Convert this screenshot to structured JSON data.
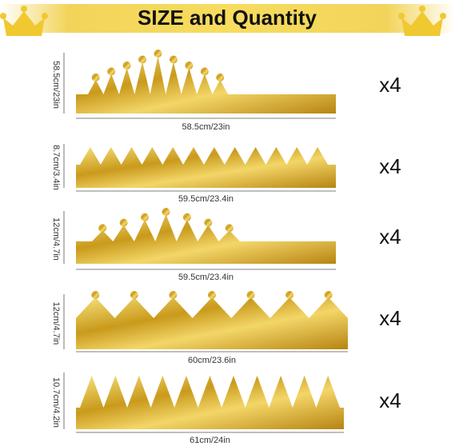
{
  "header": {
    "title": "SIZE and Quantity"
  },
  "items": [
    {
      "height": "58.5cm/23in",
      "width": "58.5cm/23in",
      "quantity": "x4"
    },
    {
      "height": "8.7cm/3.4in",
      "width": "59.5cm/23.4in",
      "quantity": "x4"
    },
    {
      "height": "12cm/4.7in",
      "width": "59.5cm/23.4in",
      "quantity": "x4"
    },
    {
      "height": "12cm/4.7in",
      "width": "60cm/23.6in",
      "quantity": "x4"
    },
    {
      "height": "10.7cm/4.2in",
      "width": "61cm/24in",
      "quantity": "x4"
    }
  ]
}
